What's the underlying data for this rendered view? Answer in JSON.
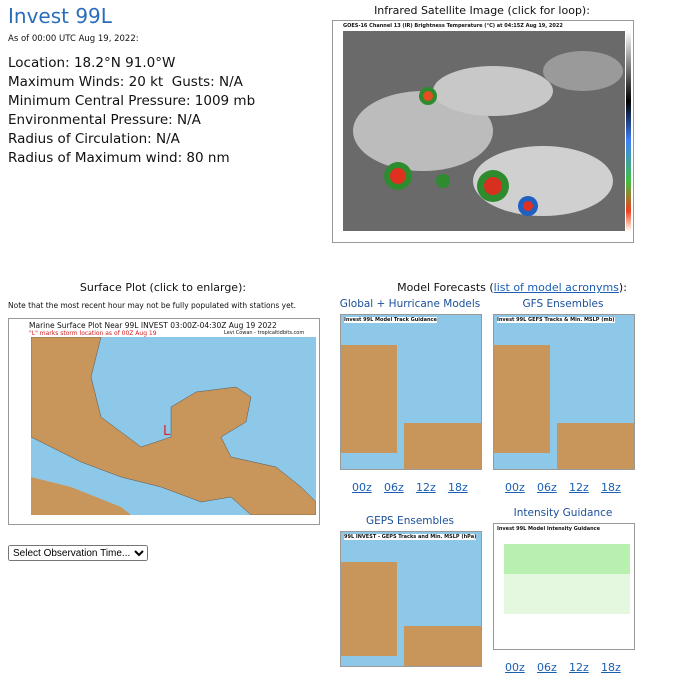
{
  "storm": {
    "title": "Invest 99L",
    "as_of": "As of 00:00 UTC Aug 19, 2022:",
    "details": [
      "Location: 18.2°N 91.0°W",
      "Maximum Winds: 20 kt  Gusts: N/A",
      "Minimum Central Pressure: 1009 mb",
      "Environmental Pressure: N/A",
      "Radius of Circulation: N/A",
      "Radius of Maximum wind: 80 nm"
    ]
  },
  "satellite": {
    "heading": "Infrared Satellite Image (click for loop):",
    "image_title": "GOES-16 Channel 13 (IR) Brightness Temperature (°C) at 04:15Z Aug 19, 2022"
  },
  "surface": {
    "heading": "Surface Plot (click to enlarge):",
    "note": "Note that the most recent hour may not be fully populated with stations yet.",
    "image_title": "Marine Surface Plot Near 99L INVEST 03:00Z-04:30Z Aug 19 2022",
    "image_subtitle": "\"L\" marks storm location as of 00Z Aug 19",
    "credit": "Levi Cowan - tropicaltidbits.com",
    "storm_marker": "L",
    "select": "Select Observation Time..."
  },
  "models": {
    "heading_prefix": "Model Forecasts (",
    "heading_link": "list of model acronyms",
    "heading_suffix": "):",
    "panels": [
      {
        "title": "Global + Hurricane Models",
        "image_title": "Invest 99L Model Track Guidance",
        "links": [
          "00z",
          "06z",
          "12z",
          "18z"
        ]
      },
      {
        "title": "GFS Ensembles",
        "image_title": "Invest 99L GEFS Tracks & Min. MSLP (mb)",
        "links": [
          "00z",
          "06z",
          "12z",
          "18z"
        ]
      },
      {
        "title": "GEPS Ensembles",
        "image_title": "99L INVEST - GEPS Tracks and Min. MSLP (hPa)",
        "links": []
      },
      {
        "title": "Intensity Guidance",
        "image_title": "Invest 99L Model Intensity Guidance",
        "links": [
          "00z",
          "06z",
          "12z",
          "18z"
        ]
      }
    ]
  }
}
